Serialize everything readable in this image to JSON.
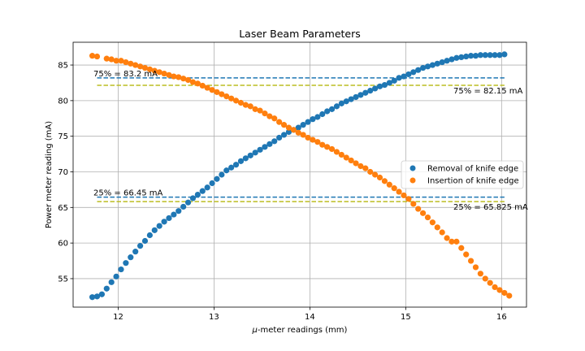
{
  "chart_data": {
    "type": "scatter",
    "title": "Laser Beam Parameters",
    "xlabel_prefix": "μ",
    "xlabel_rest": "-meter readings (mm)",
    "ylabel": "Power meter reading (mA)",
    "xlim": [
      11.53,
      16.26
    ],
    "ylim": [
      51.0,
      88.2
    ],
    "xticks": [
      12,
      13,
      14,
      15,
      16
    ],
    "yticks": [
      55,
      60,
      65,
      70,
      75,
      80,
      85
    ],
    "grid": true,
    "legend_position": "right",
    "series": [
      {
        "name": "Removal of knife edge",
        "color": "#1f77b4",
        "x": [
          11.73,
          11.78,
          11.83,
          11.88,
          11.93,
          11.98,
          12.03,
          12.08,
          12.13,
          12.18,
          12.23,
          12.28,
          12.33,
          12.38,
          12.43,
          12.48,
          12.53,
          12.58,
          12.63,
          12.68,
          12.73,
          12.78,
          12.83,
          12.88,
          12.93,
          12.98,
          13.03,
          13.08,
          13.13,
          13.18,
          13.23,
          13.28,
          13.33,
          13.38,
          13.43,
          13.48,
          13.53,
          13.58,
          13.63,
          13.68,
          13.73,
          13.78,
          13.83,
          13.88,
          13.93,
          13.98,
          14.03,
          14.08,
          14.13,
          14.18,
          14.23,
          14.28,
          14.33,
          14.38,
          14.43,
          14.48,
          14.53,
          14.58,
          14.63,
          14.68,
          14.73,
          14.78,
          14.83,
          14.88,
          14.93,
          14.98,
          15.03,
          15.08,
          15.13,
          15.18,
          15.23,
          15.28,
          15.33,
          15.38,
          15.43,
          15.48,
          15.53,
          15.58,
          15.63,
          15.68,
          15.73,
          15.78,
          15.83,
          15.88,
          15.93,
          15.98,
          16.03
        ],
        "y": [
          52.4,
          52.5,
          52.8,
          53.6,
          54.5,
          55.3,
          56.3,
          57.2,
          58.0,
          58.8,
          59.6,
          60.3,
          61.1,
          61.8,
          62.4,
          63.0,
          63.5,
          64.0,
          64.5,
          65.1,
          65.7,
          66.3,
          66.8,
          67.3,
          67.8,
          68.4,
          69.0,
          69.6,
          70.2,
          70.6,
          71.0,
          71.5,
          71.9,
          72.3,
          72.7,
          73.1,
          73.5,
          73.9,
          74.3,
          74.8,
          75.2,
          75.6,
          75.9,
          76.2,
          76.6,
          77.0,
          77.4,
          77.7,
          78.1,
          78.5,
          78.8,
          79.2,
          79.6,
          79.9,
          80.2,
          80.5,
          80.8,
          81.1,
          81.4,
          81.7,
          82.0,
          82.2,
          82.5,
          82.8,
          83.2,
          83.4,
          83.7,
          84.0,
          84.3,
          84.6,
          84.8,
          85.0,
          85.2,
          85.4,
          85.6,
          85.8,
          86.0,
          86.1,
          86.2,
          86.3,
          86.3,
          86.4,
          86.4,
          86.4,
          86.4,
          86.4,
          86.5
        ]
      },
      {
        "name": "Insertion of knife edge",
        "color": "#ff7f0e",
        "x": [
          11.73,
          11.78,
          11.88,
          11.93,
          11.98,
          12.03,
          12.08,
          12.13,
          12.18,
          12.23,
          12.28,
          12.33,
          12.38,
          12.43,
          12.48,
          12.53,
          12.58,
          12.63,
          12.68,
          12.73,
          12.78,
          12.83,
          12.88,
          12.93,
          12.98,
          13.03,
          13.08,
          13.13,
          13.18,
          13.23,
          13.28,
          13.33,
          13.38,
          13.43,
          13.48,
          13.53,
          13.58,
          13.63,
          13.68,
          13.73,
          13.78,
          13.83,
          13.88,
          13.93,
          13.98,
          14.03,
          14.08,
          14.13,
          14.18,
          14.23,
          14.28,
          14.33,
          14.38,
          14.43,
          14.48,
          14.53,
          14.58,
          14.63,
          14.68,
          14.73,
          14.78,
          14.83,
          14.88,
          14.93,
          14.98,
          15.03,
          15.08,
          15.13,
          15.18,
          15.23,
          15.28,
          15.33,
          15.38,
          15.43,
          15.48,
          15.53,
          15.58,
          15.63,
          15.68,
          15.73,
          15.78,
          15.83,
          15.88,
          15.93,
          15.98,
          16.03,
          16.08
        ],
        "y": [
          86.3,
          86.2,
          85.9,
          85.8,
          85.6,
          85.6,
          85.4,
          85.2,
          85.0,
          84.8,
          84.6,
          84.4,
          84.2,
          84.0,
          83.8,
          83.6,
          83.4,
          83.3,
          83.1,
          82.9,
          82.6,
          82.4,
          82.1,
          81.8,
          81.5,
          81.2,
          80.9,
          80.6,
          80.3,
          80.0,
          79.7,
          79.4,
          79.2,
          78.8,
          78.6,
          78.2,
          77.8,
          77.5,
          77.0,
          76.6,
          76.2,
          75.9,
          75.5,
          75.2,
          74.8,
          74.5,
          74.2,
          73.8,
          73.5,
          73.2,
          72.8,
          72.4,
          72.0,
          71.6,
          71.2,
          70.8,
          70.5,
          70.0,
          69.6,
          69.2,
          68.7,
          68.2,
          67.7,
          67.2,
          66.7,
          66.2,
          65.5,
          64.8,
          64.2,
          63.6,
          62.9,
          62.2,
          61.5,
          60.7,
          60.2,
          60.2,
          59.3,
          58.4,
          57.5,
          56.6,
          55.7,
          55.0,
          54.4,
          53.8,
          53.4,
          53.0,
          52.6
        ]
      }
    ],
    "reference_lines": [
      {
        "y": 83.2,
        "x_start": 11.78,
        "x_end": 16.03,
        "color": "#1f77b4",
        "label": "75% = 83.2 mA"
      },
      {
        "y": 82.15,
        "x_start": 11.78,
        "x_end": 16.03,
        "color": "#bcbd22",
        "label": "75% = 82.15 mA"
      },
      {
        "y": 66.45,
        "x_start": 11.78,
        "x_end": 16.03,
        "color": "#1f77b4",
        "label": "25% = 66.45 mA"
      },
      {
        "y": 65.825,
        "x_start": 11.78,
        "x_end": 16.03,
        "color": "#bcbd22",
        "label": "25% = 65.825 mA"
      }
    ]
  }
}
